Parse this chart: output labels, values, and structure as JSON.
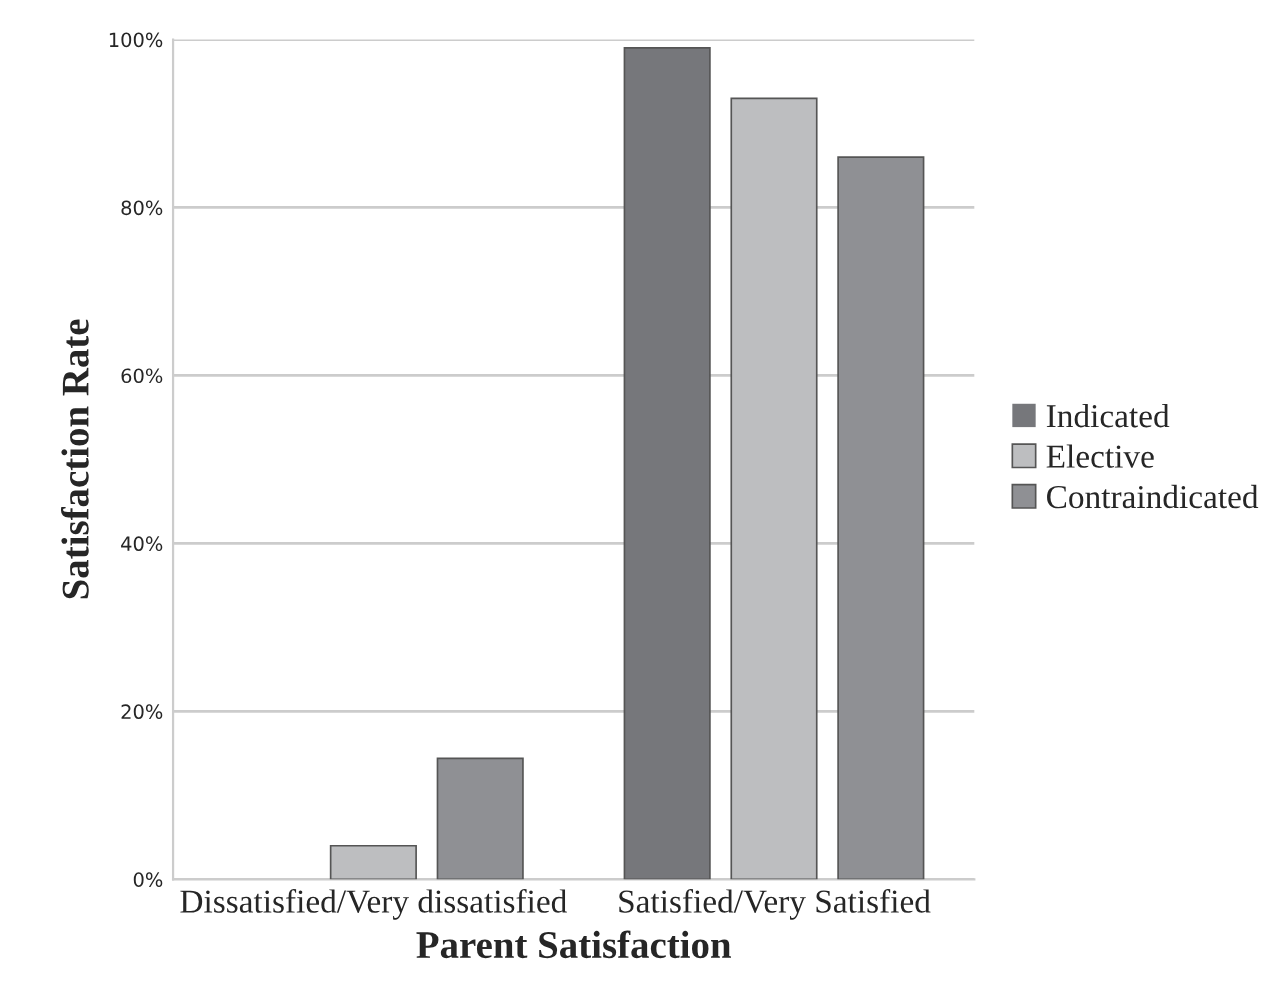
{
  "chart_data": {
    "type": "bar",
    "xlabel": "Parent Satisfaction",
    "ylabel": "Satisfaction Rate",
    "categories": [
      "Dissatisfied/Very dissatisfied",
      "Satisfied/Very Satisfied"
    ],
    "series": [
      {
        "name": "Indicated",
        "color": "#76777b",
        "values": [
          0,
          99
        ]
      },
      {
        "name": "Elective",
        "color": "#bdbec0",
        "values": [
          4,
          93
        ]
      },
      {
        "name": "Contraindicated",
        "color": "#8f9094",
        "values": [
          14.4,
          86
        ]
      }
    ],
    "ylim": [
      0,
      100
    ],
    "yticks": [
      {
        "value": 0,
        "label": "0%"
      },
      {
        "value": 20,
        "label": "20%"
      },
      {
        "value": 40,
        "label": "40%"
      },
      {
        "value": 60,
        "label": "60%"
      },
      {
        "value": 80,
        "label": "80%"
      },
      {
        "value": 100,
        "label": "100%"
      }
    ],
    "grid": "y",
    "legend": "right"
  }
}
